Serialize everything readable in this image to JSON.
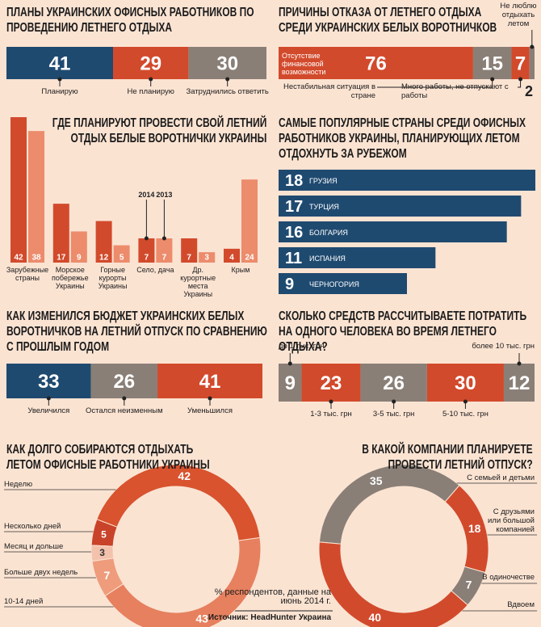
{
  "chart_data": [
    {
      "type": "stacked_bar",
      "title": "ПЛАНЫ УКРАИНСКИХ ОФИСНЫХ РАБОТНИКОВ ПО ПРОВЕДЕНИЮ ЛЕТНЕГО ОТДЫХА",
      "categories": [
        "Планирую",
        "Не планирую",
        "Затруднились ответить"
      ],
      "values": [
        41,
        29,
        30
      ],
      "colors": [
        "#1f4a70",
        "#d24a2c",
        "#8a7f77"
      ]
    },
    {
      "type": "stacked_bar",
      "title": "ПРИЧИНЫ ОТКАЗА ОТ ЛЕТНЕГО ОТДЫХА СРЕДИ УКРАИНСКИХ БЕЛЫХ ВОРОТНИЧКОВ",
      "categories": [
        "Отсутствие финансовой возможности",
        "Нестабильная ситуация в стране",
        "Много работы, не отпускают с работы",
        "Не люблю отдыхать летом"
      ],
      "values": [
        76,
        15,
        7,
        2
      ],
      "colors": [
        "#d24a2c",
        "#8a7f77",
        "#d24a2c",
        "#8a7f77"
      ]
    },
    {
      "type": "bar",
      "title": "ГДЕ ПЛАНИРУЮТ ПРОВЕСТИ СВОЙ ЛЕТНИЙ ОТДЫХ БЕЛЫЕ ВОРОТНИЧКИ УКРАИНЫ",
      "categories": [
        "Зарубежные страны",
        "Морское побережье Украины",
        "Горные курорты Украины",
        "Село, дача",
        "Др. курортные места Украины",
        "Крым"
      ],
      "series": [
        {
          "name": "2014",
          "color": "#d24a2c",
          "values": [
            42,
            17,
            12,
            7,
            7,
            4
          ]
        },
        {
          "name": "2013",
          "color": "#ec8c6c",
          "values": [
            38,
            9,
            5,
            7,
            3,
            24
          ]
        }
      ]
    },
    {
      "type": "hbar",
      "title": "САМЫЕ ПОПУЛЯРНЫЕ СТРАНЫ СРЕДИ ОФИСНЫХ РАБОТНИКОВ УКРАИНЫ, ПЛАНИРУЮЩИХ ЛЕТОМ ОТДОХНУТЬ ЗА РУБЕЖОМ",
      "categories": [
        "ГРУЗИЯ",
        "ТУРЦИЯ",
        "БОЛГАРИЯ",
        "ИСПАНИЯ",
        "ЧЕРНОГОРИЯ"
      ],
      "values": [
        18,
        17,
        16,
        11,
        9
      ],
      "color": "#1f4a70"
    },
    {
      "type": "stacked_bar",
      "title": "КАК ИЗМЕНИЛСЯ БЮДЖЕТ УКРАИНСКИХ БЕЛЫХ ВОРОТНИЧКОВ НА ЛЕТНИЙ ОТПУСК ПО СРАВНЕНИЮ С ПРОШЛЫМ ГОДОМ",
      "categories": [
        "Увеличился",
        "Остался неизменным",
        "Уменьшился"
      ],
      "values": [
        33,
        26,
        41
      ],
      "colors": [
        "#1f4a70",
        "#8a7f77",
        "#d24a2c"
      ]
    },
    {
      "type": "stacked_bar",
      "title": "СКОЛЬКО СРЕДСТВ РАССЧИТЫВАЕТЕ ПОТРАТИТЬ НА ОДНОГО ЧЕЛОВЕКА ВО ВРЕМЯ ЛЕТНЕГО ОТДЫХА?",
      "categories": [
        "до 1 тыс. грн",
        "1-3 тыс. грн",
        "3-5 тыс. грн",
        "5-10 тыс. грн",
        "более 10 тыс. грн"
      ],
      "values": [
        9,
        23,
        26,
        30,
        12
      ],
      "colors": [
        "#8a7f77",
        "#d24a2c",
        "#8a7f77",
        "#d24a2c",
        "#8a7f77"
      ]
    },
    {
      "type": "donut",
      "title": "КАК ДОЛГО СОБИРАЮТСЯ ОТДЫХАТЬ ЛЕТОМ ОФИСНЫЕ РАБОТНИКИ УКРАИНЫ",
      "categories": [
        "Неделю",
        "Несколько дней",
        "Месяц и дольше",
        "Больше двух недель",
        "10-14 дней"
      ],
      "values": [
        42,
        5,
        3,
        7,
        43
      ],
      "colors": [
        "#d8532e",
        "#c9432a",
        "#f3c2ac",
        "#ee9c7c",
        "#e6805e"
      ]
    },
    {
      "type": "donut",
      "title": "В КАКОЙ КОМПАНИИ ПЛАНИРУЕТЕ ПРОВЕСТИ ЛЕТНИЙ ОТПУСК?",
      "categories": [
        "С семьей и детьми",
        "С друзьями или большой компанией",
        "В одиночестве",
        "Вдвоем"
      ],
      "values": [
        35,
        18,
        7,
        40
      ],
      "colors": [
        "#8a7f77",
        "#d24a2c",
        "#8a7f77",
        "#d24a2c"
      ]
    }
  ],
  "footer": {
    "note": "% респондентов, данные на июнь 2014 г.",
    "source": "Источник: HeadHunter Украина"
  }
}
